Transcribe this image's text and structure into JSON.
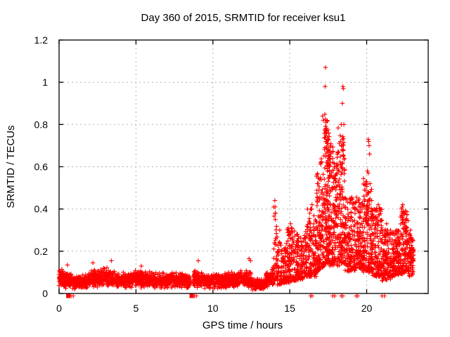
{
  "chart_data": {
    "type": "scatter",
    "title": "Day 360 of 2015, SRMTID for receiver ksu1",
    "xlabel": "GPS time / hours",
    "ylabel": "SRMTID / TECUs",
    "xlim": [
      0,
      24
    ],
    "ylim": [
      0,
      1.2
    ],
    "x_tick_values": [
      0,
      5,
      10,
      15,
      20
    ],
    "x_tick_labels": [
      "0",
      "5",
      "10",
      "15",
      "20"
    ],
    "y_tick_values": [
      0,
      0.2,
      0.4,
      0.6,
      0.8,
      1,
      1.2
    ],
    "y_tick_labels": [
      "0",
      "0.2",
      "0.4",
      "0.6",
      "0.8",
      "1",
      "1.2"
    ],
    "grid": true,
    "legend": false,
    "marker": "plus",
    "marker_color": "#ff0000",
    "grid_color": "#b0b0b0",
    "border_color": "#000000",
    "background_color": "#ffffff",
    "seed": 360201,
    "segments_format": "[x_start, x_end, count, y_low_start, y_high_start, y_low_end, y_high_end, dist] ; dist 0 = centered band, >0 = power-law tail toward y_low",
    "band_segments": [
      [
        0.0,
        0.35,
        60,
        0.03,
        0.13,
        0.02,
        0.11,
        0
      ],
      [
        0.35,
        1.15,
        110,
        0.02,
        0.11,
        0.015,
        0.09,
        0
      ],
      [
        1.15,
        2.05,
        130,
        0.02,
        0.09,
        0.02,
        0.1,
        0
      ],
      [
        2.05,
        2.9,
        130,
        0.025,
        0.12,
        0.03,
        0.12,
        0
      ],
      [
        2.9,
        3.6,
        110,
        0.03,
        0.13,
        0.025,
        0.11,
        0
      ],
      [
        3.6,
        5.0,
        200,
        0.02,
        0.1,
        0.025,
        0.11,
        0
      ],
      [
        5.0,
        6.5,
        220,
        0.025,
        0.115,
        0.02,
        0.1,
        0
      ],
      [
        6.5,
        7.6,
        160,
        0.02,
        0.1,
        0.025,
        0.105,
        0
      ],
      [
        7.6,
        8.5,
        130,
        0.025,
        0.105,
        0.02,
        0.09,
        0
      ],
      [
        8.5,
        8.75,
        6,
        0.03,
        0.07,
        0.03,
        0.07,
        0
      ],
      [
        8.75,
        9.35,
        95,
        0.025,
        0.12,
        0.025,
        0.105,
        0
      ],
      [
        9.35,
        11.0,
        250,
        0.02,
        0.1,
        0.02,
        0.1,
        0
      ],
      [
        11.0,
        12.5,
        230,
        0.02,
        0.105,
        0.025,
        0.115,
        0
      ],
      [
        12.5,
        13.4,
        130,
        0.012,
        0.08,
        0.015,
        0.075,
        0
      ],
      [
        13.4,
        13.95,
        85,
        0.02,
        0.1,
        0.04,
        0.13,
        0
      ],
      [
        13.95,
        14.2,
        40,
        0.06,
        0.44,
        0.06,
        0.3,
        2.2
      ],
      [
        14.2,
        14.75,
        90,
        0.04,
        0.25,
        0.05,
        0.22,
        1.8
      ],
      [
        14.75,
        15.35,
        115,
        0.05,
        0.33,
        0.06,
        0.3,
        1.8
      ],
      [
        15.35,
        16.1,
        135,
        0.06,
        0.28,
        0.07,
        0.3,
        1.6
      ],
      [
        16.1,
        16.75,
        135,
        0.08,
        0.42,
        0.08,
        0.38,
        1.8
      ],
      [
        16.75,
        17.25,
        145,
        0.1,
        0.6,
        0.13,
        0.68,
        1.7
      ],
      [
        17.25,
        17.6,
        160,
        0.14,
        0.86,
        0.15,
        0.8,
        1.6
      ],
      [
        17.6,
        18.1,
        150,
        0.13,
        0.72,
        0.14,
        0.68,
        1.6
      ],
      [
        18.1,
        18.6,
        145,
        0.13,
        0.8,
        0.14,
        0.72,
        1.6
      ],
      [
        18.6,
        19.3,
        150,
        0.1,
        0.48,
        0.11,
        0.44,
        1.5
      ],
      [
        19.3,
        19.75,
        110,
        0.12,
        0.46,
        0.12,
        0.44,
        1.4
      ],
      [
        19.75,
        20.35,
        150,
        0.1,
        0.55,
        0.1,
        0.5,
        1.6
      ],
      [
        20.35,
        21.0,
        150,
        0.08,
        0.42,
        0.08,
        0.4,
        1.5
      ],
      [
        21.0,
        21.7,
        140,
        0.06,
        0.32,
        0.07,
        0.3,
        1.4
      ],
      [
        21.7,
        22.2,
        120,
        0.08,
        0.3,
        0.09,
        0.3,
        1.3
      ],
      [
        22.2,
        22.7,
        120,
        0.09,
        0.42,
        0.1,
        0.38,
        1.5
      ],
      [
        22.7,
        23.05,
        80,
        0.08,
        0.3,
        0.08,
        0.25,
        1.3
      ]
    ],
    "outliers": [
      [
        0.55,
        0.135
      ],
      [
        2.2,
        0.145
      ],
      [
        3.4,
        0.155
      ],
      [
        5.35,
        0.13
      ],
      [
        9.05,
        0.155
      ],
      [
        12.35,
        0.165
      ],
      [
        12.45,
        0.155
      ],
      [
        14.03,
        0.44
      ],
      [
        14.05,
        0.41
      ],
      [
        14.07,
        0.38
      ],
      [
        14.06,
        0.35
      ],
      [
        14.35,
        0.3
      ],
      [
        15.05,
        0.33
      ],
      [
        15.1,
        0.31
      ],
      [
        15.5,
        0.28
      ],
      [
        16.35,
        0.4
      ],
      [
        16.45,
        0.42
      ],
      [
        17.32,
        1.07
      ],
      [
        17.3,
        0.98
      ],
      [
        17.14,
        0.84
      ],
      [
        17.18,
        0.82
      ],
      [
        17.36,
        0.81
      ],
      [
        17.33,
        0.78
      ],
      [
        17.4,
        0.76
      ],
      [
        17.45,
        0.73
      ],
      [
        17.38,
        0.72
      ],
      [
        17.5,
        0.71
      ],
      [
        17.28,
        0.69
      ],
      [
        17.42,
        0.67
      ],
      [
        17.55,
        0.65
      ],
      [
        17.48,
        0.63
      ],
      [
        17.52,
        0.6
      ],
      [
        17.44,
        0.58
      ],
      [
        17.58,
        0.56
      ],
      [
        17.8,
        0.62
      ],
      [
        17.9,
        0.6
      ],
      [
        17.85,
        0.55
      ],
      [
        18.45,
        0.98
      ],
      [
        18.48,
        0.97
      ],
      [
        18.42,
        0.9
      ],
      [
        18.35,
        0.8
      ],
      [
        18.52,
        0.8
      ],
      [
        18.3,
        0.72
      ],
      [
        18.4,
        0.68
      ],
      [
        18.55,
        0.64
      ],
      [
        19.0,
        0.45
      ],
      [
        19.45,
        0.44
      ],
      [
        20.1,
        0.73
      ],
      [
        20.13,
        0.72
      ],
      [
        20.16,
        0.7
      ],
      [
        20.19,
        0.66
      ],
      [
        20.05,
        0.58
      ],
      [
        20.1,
        0.57
      ],
      [
        20.22,
        0.52
      ],
      [
        20.08,
        0.48
      ],
      [
        20.75,
        0.42
      ],
      [
        20.9,
        0.4
      ],
      [
        21.3,
        0.33
      ],
      [
        22.35,
        0.42
      ],
      [
        22.42,
        0.38
      ],
      [
        22.3,
        0.36
      ],
      [
        22.55,
        0.35
      ],
      [
        22.85,
        0.3
      ]
    ],
    "zero_marks": {
      "squares": [
        0.6,
        8.62
      ],
      "ticks": [
        0.78,
        0.92,
        8.8,
        8.92,
        16.35,
        16.45,
        17.8,
        17.92,
        18.35,
        18.45,
        19.32,
        19.42,
        21.0,
        21.15
      ]
    }
  }
}
